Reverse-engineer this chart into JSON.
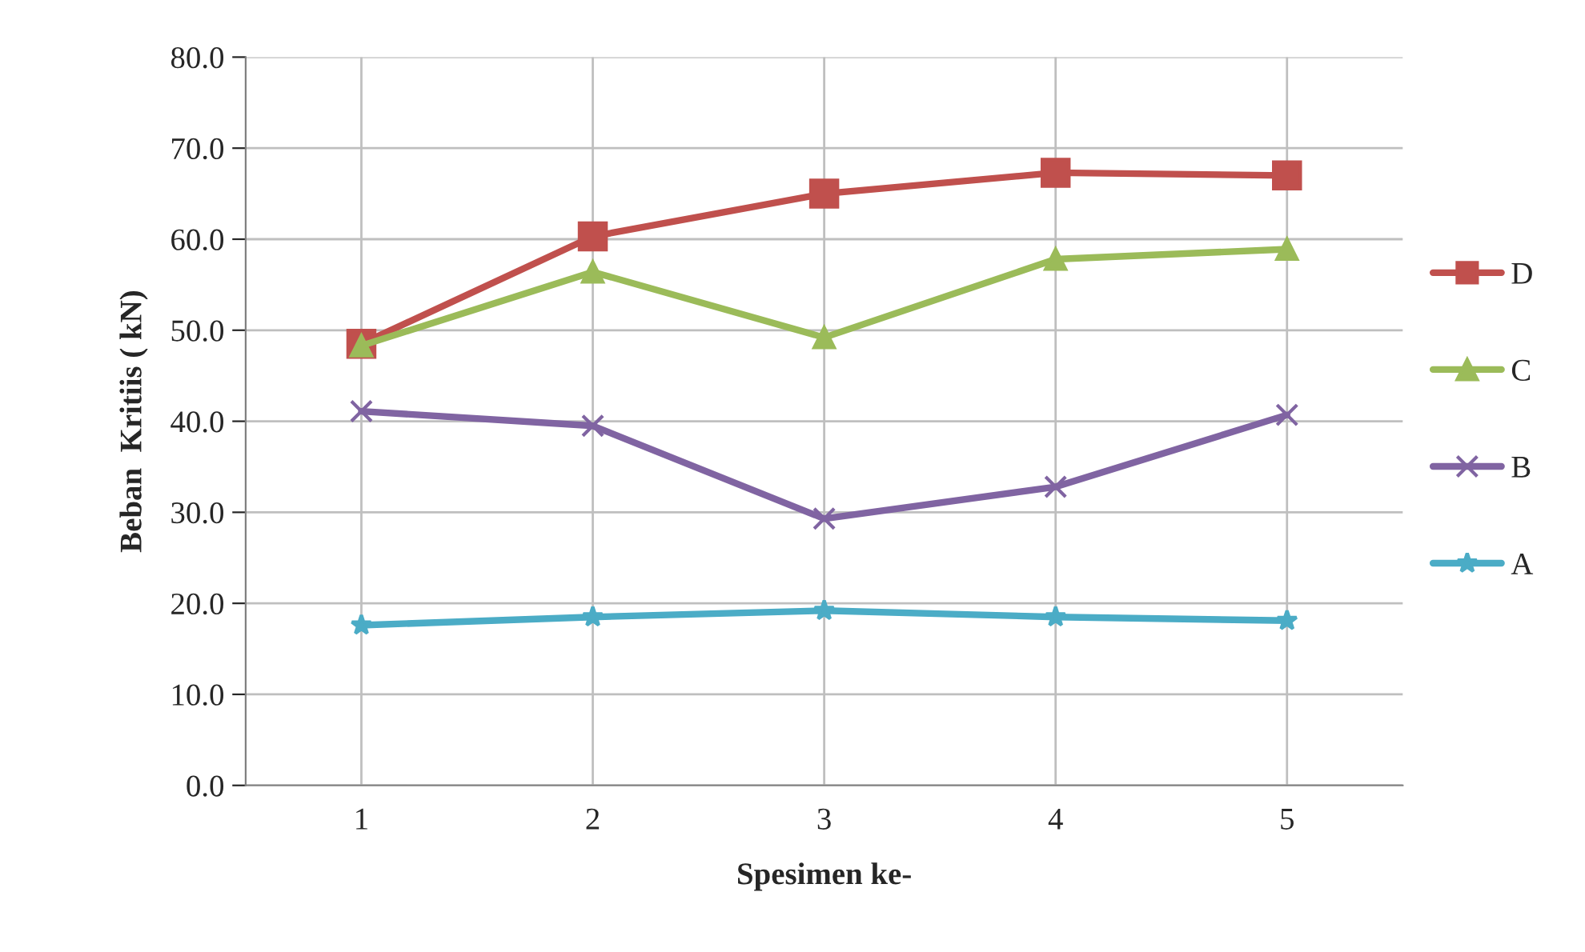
{
  "chart_data": {
    "type": "line",
    "xlabel": "Spesimen ke-",
    "ylabel": "Beban  Kritiis ( kN)",
    "categories": [
      "1",
      "2",
      "3",
      "4",
      "5"
    ],
    "series": [
      {
        "name": "D",
        "color": "#c0504d",
        "marker": "square",
        "values": [
          48.5,
          60.3,
          65.0,
          67.3,
          67.0
        ]
      },
      {
        "name": "C",
        "color": "#9bbb59",
        "marker": "triangle",
        "values": [
          48.3,
          56.4,
          49.2,
          57.8,
          58.9
        ]
      },
      {
        "name": "B",
        "color": "#8064a2",
        "marker": "cross",
        "values": [
          41.1,
          39.5,
          29.3,
          32.8,
          40.7
        ]
      },
      {
        "name": "A",
        "color": "#4bacc6",
        "marker": "star",
        "values": [
          17.6,
          18.5,
          19.2,
          18.5,
          18.1
        ]
      }
    ],
    "ylim": [
      0,
      80
    ],
    "yticks": [
      {
        "value": 0,
        "label": "0.0"
      },
      {
        "value": 10,
        "label": "10.0"
      },
      {
        "value": 20,
        "label": "20.0"
      },
      {
        "value": 30,
        "label": "30.0"
      },
      {
        "value": 40,
        "label": "40.0"
      },
      {
        "value": 50,
        "label": "50.0"
      },
      {
        "value": 60,
        "label": "60.0"
      },
      {
        "value": 70,
        "label": "70.0"
      },
      {
        "value": 80,
        "label": "80.0"
      }
    ],
    "grid": true,
    "legend": "right",
    "line_style": "solid"
  }
}
